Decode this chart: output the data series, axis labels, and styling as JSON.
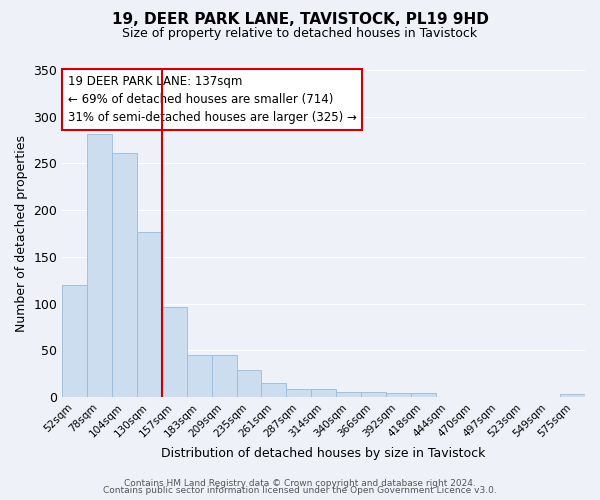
{
  "title": "19, DEER PARK LANE, TAVISTOCK, PL19 9HD",
  "subtitle": "Size of property relative to detached houses in Tavistock",
  "xlabel": "Distribution of detached houses by size in Tavistock",
  "ylabel": "Number of detached properties",
  "bar_labels": [
    "52sqm",
    "78sqm",
    "104sqm",
    "130sqm",
    "157sqm",
    "183sqm",
    "209sqm",
    "235sqm",
    "261sqm",
    "287sqm",
    "314sqm",
    "340sqm",
    "366sqm",
    "392sqm",
    "418sqm",
    "444sqm",
    "470sqm",
    "497sqm",
    "523sqm",
    "549sqm",
    "575sqm"
  ],
  "bar_values": [
    120,
    282,
    261,
    177,
    96,
    45,
    45,
    29,
    15,
    8,
    9,
    5,
    5,
    4,
    4,
    0,
    0,
    0,
    0,
    0,
    3
  ],
  "bar_color": "#ccddf0",
  "bar_edge_color": "#99bbdd",
  "property_line_color": "#cc0000",
  "property_line_index": 3,
  "annotation_title": "19 DEER PARK LANE: 137sqm",
  "annotation_line1": "← 69% of detached houses are smaller (714)",
  "annotation_line2": "31% of semi-detached houses are larger (325) →",
  "annotation_box_edgecolor": "#cc0000",
  "ylim": [
    0,
    350
  ],
  "yticks": [
    0,
    50,
    100,
    150,
    200,
    250,
    300,
    350
  ],
  "footer1": "Contains HM Land Registry data © Crown copyright and database right 2024.",
  "footer2": "Contains public sector information licensed under the Open Government Licence v3.0.",
  "bg_color": "#eef2f8",
  "grid_color": "#ffffff"
}
